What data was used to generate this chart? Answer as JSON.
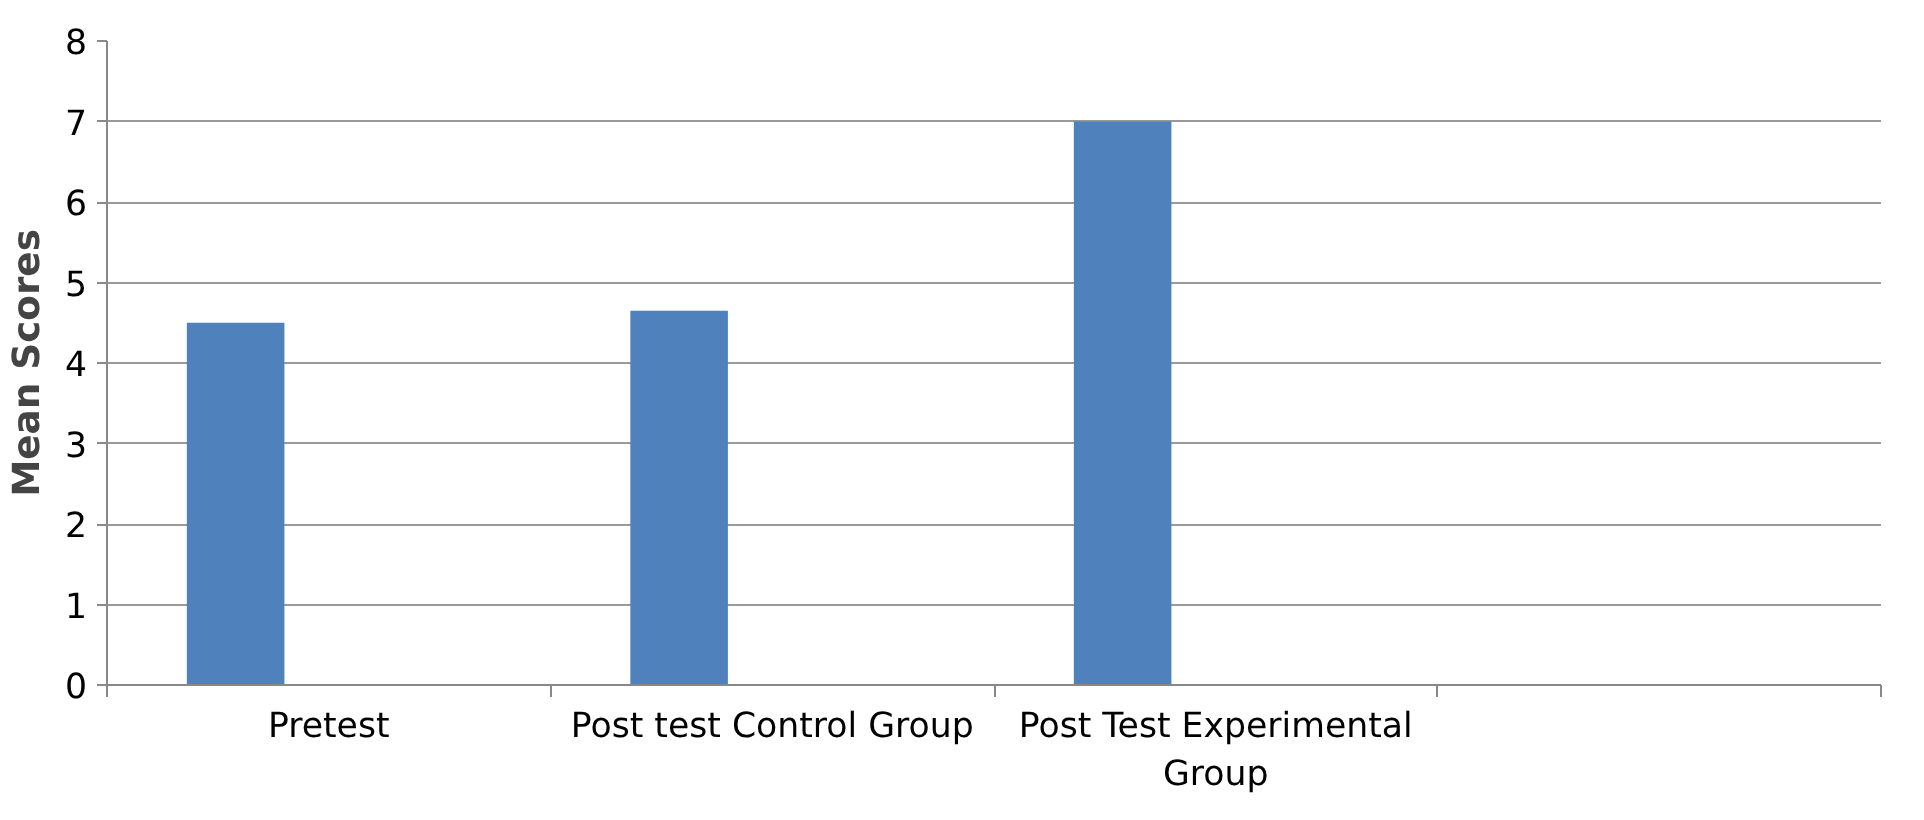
{
  "chart_data": {
    "type": "bar",
    "ylabel": "Mean Scores",
    "categories": [
      "Pretest",
      "Post test Control Group",
      "Post Test Experimental Group",
      null
    ],
    "values": [
      4.5,
      4.65,
      7.0,
      null
    ],
    "color": "#4f81bd",
    "ylim": [
      0,
      8
    ],
    "yticks": [
      0,
      1,
      2,
      3,
      4,
      5,
      6,
      7,
      8
    ],
    "grid": "y"
  }
}
